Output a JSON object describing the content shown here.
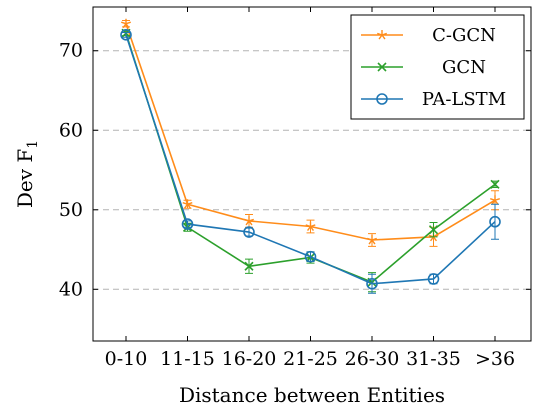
{
  "chart_data": {
    "type": "line",
    "xlabel": "Distance between Entities",
    "ylabel": "Dev F",
    "ylabel_subscript": "1",
    "categories": [
      "0-10",
      "11-15",
      "16-20",
      "21-25",
      "26-30",
      "31-35",
      ">36"
    ],
    "ylim": [
      33.5,
      75.5
    ],
    "yticks": [
      40,
      50,
      60,
      70
    ],
    "grid": "horizontal-dashed",
    "legend_position": "top-right",
    "series": [
      {
        "name": "C-GCN",
        "color": "#ff8c1a",
        "marker": "star",
        "values": [
          73.4,
          50.7,
          48.6,
          47.9,
          46.2,
          46.6,
          51.2
        ],
        "errors": [
          0.4,
          0.5,
          0.8,
          0.8,
          0.8,
          1.2,
          1.2
        ]
      },
      {
        "name": "GCN",
        "color": "#2ca02c",
        "marker": "x",
        "values": [
          72.2,
          47.8,
          42.9,
          44.0,
          40.9,
          47.5,
          53.2
        ],
        "errors": [
          0.3,
          0.5,
          0.9,
          0.7,
          1.2,
          0.9,
          0.4
        ]
      },
      {
        "name": "PA-LSTM",
        "color": "#1f77b4",
        "marker": "circle",
        "values": [
          72.0,
          48.2,
          47.2,
          44.1,
          40.7,
          41.3,
          48.5
        ],
        "errors": [
          0.3,
          0.4,
          0.5,
          0.6,
          1.2,
          0.6,
          2.2
        ]
      }
    ]
  }
}
